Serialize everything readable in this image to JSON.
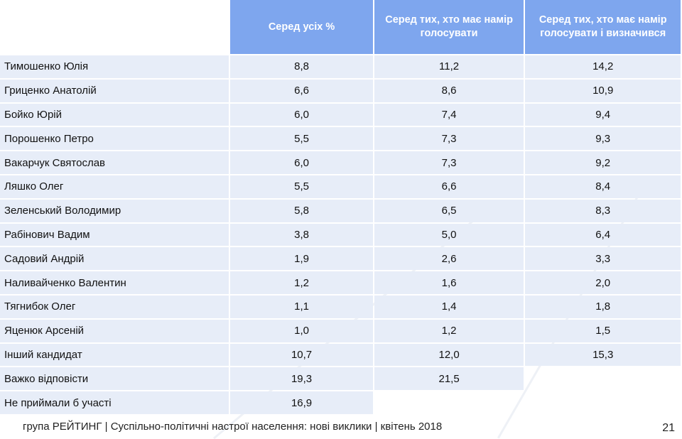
{
  "headers": [
    "",
    "Серед усіх %",
    "Серед тих, хто має намір голосувати",
    "Серед тих, хто має намір голосувати і визначився"
  ],
  "rows": [
    {
      "name": "Тимошенко Юлія",
      "all": "8,8",
      "voters": "11,2",
      "decided": "14,2"
    },
    {
      "name": "Гриценко Анатолій",
      "all": "6,6",
      "voters": "8,6",
      "decided": "10,9"
    },
    {
      "name": "Бойко Юрій",
      "all": "6,0",
      "voters": "7,4",
      "decided": "9,4"
    },
    {
      "name": "Порошенко Петро",
      "all": "5,5",
      "voters": "7,3",
      "decided": "9,3"
    },
    {
      "name": "Вакарчук Святослав",
      "all": "6,0",
      "voters": "7,3",
      "decided": "9,2"
    },
    {
      "name": "Ляшко Олег",
      "all": "5,5",
      "voters": "6,6",
      "decided": "8,4"
    },
    {
      "name": "Зеленський Володимир",
      "all": "5,8",
      "voters": "6,5",
      "decided": "8,3"
    },
    {
      "name": "Рабінович Вадим",
      "all": "3,8",
      "voters": "5,0",
      "decided": "6,4"
    },
    {
      "name": "Садовий Андрій",
      "all": "1,9",
      "voters": "2,6",
      "decided": "3,3"
    },
    {
      "name": "Наливайченко Валентин",
      "all": "1,2",
      "voters": "1,6",
      "decided": "2,0"
    },
    {
      "name": "Тягнибок Олег",
      "all": "1,1",
      "voters": "1,4",
      "decided": "1,8"
    },
    {
      "name": "Яценюк Арсеній",
      "all": "1,0",
      "voters": "1,2",
      "decided": "1,5"
    },
    {
      "name": "Інший кандидат",
      "all": "10,7",
      "voters": "12,0",
      "decided": "15,3"
    },
    {
      "name": "Важко відповісти",
      "all": "19,3",
      "voters": "21,5",
      "decided": null
    },
    {
      "name": "Не приймали б участі",
      "all": "16,9",
      "voters": null,
      "decided": null
    }
  ],
  "footer": "група РЕЙТИНГ  |  Суспільно-політичні настрої населення: нові виклики  |  квітень 2018",
  "page_number": "21",
  "colors": {
    "header": "#7ea6ee",
    "cell": "#e7edf8"
  }
}
